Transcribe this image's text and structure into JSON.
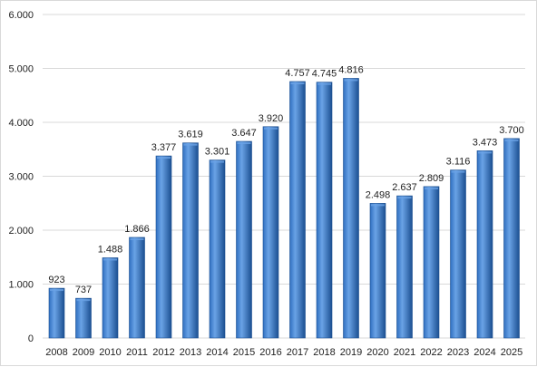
{
  "chart_data": {
    "type": "bar",
    "title": "",
    "xlabel": "",
    "ylabel": "",
    "categories": [
      "2008",
      "2009",
      "2010",
      "2011",
      "2012",
      "2013",
      "2014",
      "2015",
      "2016",
      "2017",
      "2018",
      "2019",
      "2020",
      "2021",
      "2022",
      "2023",
      "2024",
      "2025"
    ],
    "values": [
      923,
      737,
      1488,
      1866,
      3377,
      3619,
      3301,
      3647,
      3920,
      4757,
      4745,
      4816,
      2498,
      2637,
      2809,
      3116,
      3473,
      3700
    ],
    "value_labels": [
      "923",
      "737",
      "1.488",
      "1.866",
      "3.377",
      "3.619",
      "3.301",
      "3.647",
      "3.920",
      "4.757",
      "4.745",
      "4.816",
      "2.498",
      "2.637",
      "2.809",
      "3.116",
      "3.473",
      "3.700"
    ],
    "ylim": [
      0,
      6000
    ],
    "y_ticks": [
      0,
      1000,
      2000,
      3000,
      4000,
      5000,
      6000
    ],
    "y_tick_labels": [
      "0",
      "1.000",
      "2.000",
      "3.000",
      "4.000",
      "5.000",
      "6.000"
    ],
    "grid": true,
    "legend": "none",
    "colors": {
      "bar": "#2f6fc0",
      "bar_light": "#6aa3e6",
      "bar_dark": "#1b4f91",
      "grid": "#d9d9d9"
    }
  }
}
